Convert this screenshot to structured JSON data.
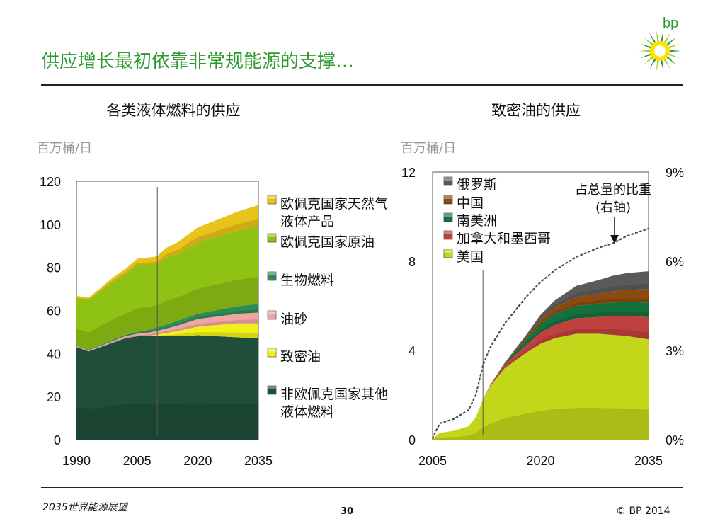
{
  "slide": {
    "title": "供应增长最初依靠非常规能源的支撑…",
    "logo_text": "bp",
    "footer": {
      "left": "2035世界能源展望",
      "center": "30",
      "right": "© BP 2014"
    }
  },
  "colors": {
    "title_green": "#2e9a2e",
    "opec_ngl": "#e8c31a",
    "opec_crude": "#8ec213",
    "biofuels": "#2e8b57",
    "oil_sands": "#f2a3a3",
    "tight_oil": "#f2ef1a",
    "non_opec": "#1f4f3a",
    "russia": "#5a5a5a",
    "china": "#8b4a10",
    "south_america": "#14713d",
    "canada_mexico": "#c04040",
    "usa": "#c3d61a"
  },
  "chart_data": [
    {
      "type": "area",
      "title": "各类液体燃料的供应",
      "ylabel": "百万桶/日",
      "ylim": [
        0,
        120
      ],
      "yticks": [
        "0",
        "20",
        "40",
        "60",
        "80",
        "100",
        "120"
      ],
      "xlim": [
        1990,
        2035
      ],
      "xticks": [
        "1990",
        "2005",
        "2020",
        "2035"
      ],
      "divider_year": 2010,
      "x": [
        1990,
        1993,
        1996,
        1999,
        2002,
        2005,
        2008,
        2010,
        2012,
        2015,
        2020,
        2025,
        2030,
        2035
      ],
      "series": [
        {
          "name": "非欧佩克国家其他液体燃料",
          "key": "non_opec",
          "values": [
            43,
            41,
            43,
            45,
            47,
            48,
            48,
            48,
            48,
            48,
            48.5,
            48,
            47.5,
            47
          ]
        },
        {
          "name": "致密油",
          "key": "tight_oil",
          "values": [
            0,
            0,
            0,
            0,
            0,
            0,
            0.3,
            0.8,
            1.5,
            2.5,
            4,
            5.3,
            6.5,
            7
          ]
        },
        {
          "name": "油砂",
          "key": "oil_sands",
          "values": [
            0.5,
            0.5,
            0.6,
            0.8,
            1,
            1.2,
            1.5,
            1.8,
            2,
            2.5,
            3.5,
            4,
            4.5,
            5
          ]
        },
        {
          "name": "生物燃料",
          "key": "biofuels",
          "values": [
            0.3,
            0.3,
            0.4,
            0.5,
            0.6,
            0.8,
            1.3,
            1.6,
            1.9,
            2.2,
            2.5,
            3,
            3.5,
            4
          ]
        },
        {
          "name": "欧佩克国家原油",
          "key": "opec_crude",
          "values": [
            22,
            23,
            25,
            27,
            28,
            31,
            30,
            29,
            31,
            31,
            33,
            34,
            35,
            36
          ]
        },
        {
          "name": "欧佩克国家天然气液体产品",
          "key": "opec_ngl",
          "values": [
            1,
            1.2,
            1.5,
            2,
            2.5,
            3,
            3.5,
            4,
            4.5,
            5.5,
            7,
            8,
            9,
            10
          ]
        }
      ],
      "legend": [
        {
          "key": "opec_ngl",
          "lines": [
            "欧佩克国家天然气",
            "液体产品"
          ]
        },
        {
          "key": "opec_crude",
          "lines": [
            "欧佩克国家原油"
          ]
        },
        {
          "key": "biofuels",
          "lines": [
            "生物燃料"
          ]
        },
        {
          "key": "oil_sands",
          "lines": [
            "油砂"
          ]
        },
        {
          "key": "tight_oil",
          "lines": [
            "致密油"
          ]
        },
        {
          "key": "non_opec",
          "lines": [
            "非欧佩克国家其他",
            "液体燃料"
          ]
        }
      ]
    },
    {
      "type": "area",
      "title": "致密油的供应",
      "ylabel": "百万桶/日",
      "ylim": [
        0,
        12
      ],
      "yticks": [
        "0",
        "4",
        "8",
        "12"
      ],
      "y2lim": [
        0,
        9
      ],
      "y2ticks": [
        "0%",
        "3%",
        "6%",
        "9%"
      ],
      "xlim": [
        2005,
        2035
      ],
      "xticks": [
        "2005",
        "2020",
        "2035"
      ],
      "divider_year": 2012,
      "x": [
        2005,
        2006,
        2008,
        2010,
        2011,
        2012,
        2013,
        2015,
        2018,
        2020,
        2022,
        2025,
        2028,
        2030,
        2032,
        2035
      ],
      "series": [
        {
          "name": "美国",
          "key": "usa",
          "values": [
            0.05,
            0.3,
            0.4,
            0.6,
            1,
            1.8,
            2.4,
            3.2,
            3.9,
            4.3,
            4.55,
            4.75,
            4.75,
            4.7,
            4.65,
            4.5
          ]
        },
        {
          "name": "加拿大和墨西哥",
          "key": "canada_mexico",
          "values": [
            0,
            0,
            0,
            0,
            0,
            0,
            0.05,
            0.15,
            0.35,
            0.5,
            0.6,
            0.7,
            0.75,
            0.85,
            0.9,
            1
          ]
        },
        {
          "name": "南美洲",
          "key": "south_america",
          "values": [
            0,
            0,
            0,
            0,
            0,
            0,
            0,
            0.05,
            0.25,
            0.4,
            0.5,
            0.55,
            0.6,
            0.6,
            0.62,
            0.65
          ]
        },
        {
          "name": "中国",
          "key": "china",
          "values": [
            0,
            0,
            0,
            0,
            0,
            0,
            0,
            0.02,
            0.1,
            0.2,
            0.3,
            0.4,
            0.45,
            0.5,
            0.55,
            0.6
          ]
        },
        {
          "name": "俄罗斯",
          "key": "russia",
          "values": [
            0,
            0,
            0,
            0,
            0,
            0,
            0,
            0.02,
            0.1,
            0.2,
            0.3,
            0.5,
            0.6,
            0.7,
            0.75,
            0.8
          ]
        }
      ],
      "share_line": {
        "label_lines": [
          "占总量的比重",
          "(右轴)"
        ],
        "axis": "right",
        "values_pct": [
          0.05,
          0.55,
          0.7,
          1,
          1.5,
          2.5,
          3.1,
          3.9,
          4.8,
          5.3,
          5.7,
          6.15,
          6.45,
          6.6,
          6.85,
          7.1
        ]
      },
      "legend": [
        {
          "key": "russia",
          "lines": [
            "俄罗斯"
          ]
        },
        {
          "key": "china",
          "lines": [
            "中国"
          ]
        },
        {
          "key": "south_america",
          "lines": [
            "南美洲"
          ]
        },
        {
          "key": "canada_mexico",
          "lines": [
            "加拿大和墨西哥"
          ]
        },
        {
          "key": "usa",
          "lines": [
            "美国"
          ]
        }
      ]
    }
  ]
}
